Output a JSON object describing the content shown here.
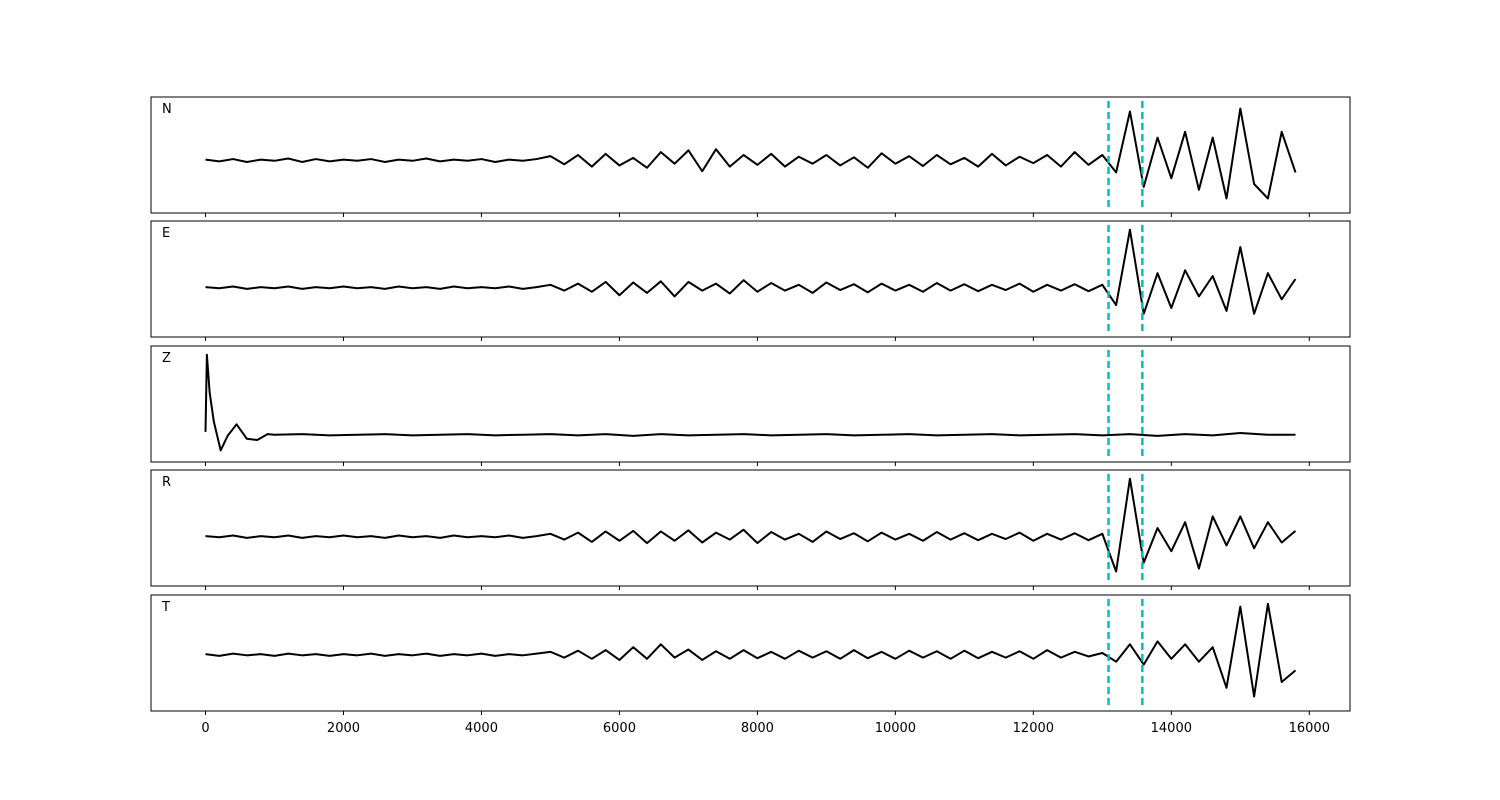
{
  "chart_data": [
    {
      "type": "line",
      "label": "N",
      "color": "#000000",
      "marker_color": "#00bfbf",
      "markers": [
        13090,
        13580
      ],
      "xlim": [
        -790,
        16590
      ],
      "ylim": [
        -1,
        1
      ],
      "xticks": [
        0,
        2000,
        4000,
        6000,
        8000,
        10000,
        12000,
        14000,
        16000
      ],
      "show_xtick_labels": false,
      "x": [
        0,
        200,
        400,
        600,
        800,
        1000,
        1200,
        1400,
        1600,
        1800,
        2000,
        2200,
        2400,
        2600,
        2800,
        3000,
        3200,
        3400,
        3600,
        3800,
        4000,
        4200,
        4400,
        4600,
        4800,
        5000,
        5200,
        5400,
        5600,
        5800,
        6000,
        6200,
        6400,
        6600,
        6800,
        7000,
        7200,
        7400,
        7600,
        7800,
        8000,
        8200,
        8400,
        8600,
        8800,
        9000,
        9200,
        9400,
        9600,
        9800,
        10000,
        10200,
        10400,
        10600,
        10800,
        11000,
        11200,
        11400,
        11600,
        11800,
        12000,
        12200,
        12400,
        12600,
        12800,
        13000,
        13200,
        13400,
        13600,
        13800,
        14000,
        14200,
        14400,
        14600,
        14800,
        15000,
        15200,
        15400,
        15600,
        15800
      ],
      "values": [
        -0.08,
        -0.11,
        -0.07,
        -0.12,
        -0.08,
        -0.1,
        -0.06,
        -0.12,
        -0.07,
        -0.11,
        -0.08,
        -0.1,
        -0.07,
        -0.12,
        -0.08,
        -0.1,
        -0.06,
        -0.11,
        -0.08,
        -0.1,
        -0.07,
        -0.12,
        -0.08,
        -0.1,
        -0.07,
        -0.02,
        -0.16,
        0.0,
        -0.2,
        0.02,
        -0.18,
        -0.05,
        -0.22,
        0.05,
        -0.15,
        0.08,
        -0.28,
        0.1,
        -0.2,
        0.0,
        -0.17,
        0.02,
        -0.2,
        -0.03,
        -0.15,
        0.0,
        -0.18,
        -0.04,
        -0.22,
        0.03,
        -0.15,
        -0.02,
        -0.19,
        0.0,
        -0.16,
        -0.05,
        -0.2,
        0.02,
        -0.18,
        -0.03,
        -0.14,
        0.0,
        -0.2,
        0.05,
        -0.17,
        0.0,
        -0.3,
        0.75,
        -0.55,
        0.3,
        -0.4,
        0.4,
        -0.6,
        0.3,
        -0.75,
        0.8,
        -0.5,
        -0.75,
        0.4,
        -0.3
      ]
    },
    {
      "type": "line",
      "label": "E",
      "color": "#000000",
      "marker_color": "#00bfbf",
      "markers": [
        13090,
        13580
      ],
      "xlim": [
        -790,
        16590
      ],
      "ylim": [
        -1,
        1
      ],
      "xticks": [
        0,
        2000,
        4000,
        6000,
        8000,
        10000,
        12000,
        14000,
        16000
      ],
      "show_xtick_labels": false,
      "x": [
        0,
        200,
        400,
        600,
        800,
        1000,
        1200,
        1400,
        1600,
        1800,
        2000,
        2200,
        2400,
        2600,
        2800,
        3000,
        3200,
        3400,
        3600,
        3800,
        4000,
        4200,
        4400,
        4600,
        4800,
        5000,
        5200,
        5400,
        5600,
        5800,
        6000,
        6200,
        6400,
        6600,
        6800,
        7000,
        7200,
        7400,
        7600,
        7800,
        8000,
        8200,
        8400,
        8600,
        8800,
        9000,
        9200,
        9400,
        9600,
        9800,
        10000,
        10200,
        10400,
        10600,
        10800,
        11000,
        11200,
        11400,
        11600,
        11800,
        12000,
        12200,
        12400,
        12600,
        12800,
        13000,
        13200,
        13400,
        13600,
        13800,
        14000,
        14200,
        14400,
        14600,
        14800,
        15000,
        15200,
        15400,
        15600,
        15800
      ],
      "values": [
        -0.14,
        -0.16,
        -0.13,
        -0.17,
        -0.14,
        -0.16,
        -0.13,
        -0.17,
        -0.14,
        -0.16,
        -0.13,
        -0.16,
        -0.14,
        -0.17,
        -0.13,
        -0.16,
        -0.14,
        -0.17,
        -0.13,
        -0.16,
        -0.14,
        -0.16,
        -0.13,
        -0.17,
        -0.14,
        -0.1,
        -0.2,
        -0.08,
        -0.22,
        -0.05,
        -0.28,
        -0.06,
        -0.24,
        -0.04,
        -0.3,
        -0.05,
        -0.2,
        -0.08,
        -0.25,
        -0.02,
        -0.22,
        -0.07,
        -0.2,
        -0.1,
        -0.24,
        -0.06,
        -0.19,
        -0.09,
        -0.23,
        -0.08,
        -0.2,
        -0.1,
        -0.22,
        -0.07,
        -0.2,
        -0.09,
        -0.21,
        -0.1,
        -0.19,
        -0.08,
        -0.22,
        -0.1,
        -0.2,
        -0.09,
        -0.21,
        -0.1,
        -0.45,
        0.85,
        -0.6,
        0.1,
        -0.5,
        0.15,
        -0.3,
        0.05,
        -0.55,
        0.55,
        -0.6,
        0.1,
        -0.35,
        0.0
      ]
    },
    {
      "type": "line",
      "label": "Z",
      "color": "#000000",
      "marker_color": "#00bfbf",
      "markers": [
        13090,
        13580
      ],
      "xlim": [
        -790,
        16590
      ],
      "ylim": [
        -1,
        1
      ],
      "xticks": [
        0,
        2000,
        4000,
        6000,
        8000,
        10000,
        12000,
        14000,
        16000
      ],
      "show_xtick_labels": false,
      "x": [
        0,
        20,
        60,
        120,
        220,
        320,
        450,
        600,
        750,
        900,
        1000,
        1400,
        1800,
        2200,
        2600,
        3000,
        3400,
        3800,
        4200,
        4600,
        5000,
        5400,
        5800,
        6200,
        6600,
        7000,
        7400,
        7800,
        8200,
        8600,
        9000,
        9400,
        9800,
        10200,
        10600,
        11000,
        11400,
        11800,
        12200,
        12600,
        13000,
        13400,
        13800,
        14200,
        14600,
        15000,
        15400,
        15800
      ],
      "values": [
        -0.48,
        0.85,
        0.2,
        -0.3,
        -0.8,
        -0.55,
        -0.35,
        -0.6,
        -0.62,
        -0.52,
        -0.53,
        -0.52,
        -0.54,
        -0.53,
        -0.52,
        -0.54,
        -0.53,
        -0.52,
        -0.54,
        -0.53,
        -0.52,
        -0.54,
        -0.52,
        -0.55,
        -0.52,
        -0.54,
        -0.53,
        -0.52,
        -0.54,
        -0.53,
        -0.52,
        -0.54,
        -0.53,
        -0.52,
        -0.54,
        -0.53,
        -0.52,
        -0.54,
        -0.53,
        -0.52,
        -0.54,
        -0.52,
        -0.55,
        -0.52,
        -0.54,
        -0.5,
        -0.53,
        -0.53
      ]
    },
    {
      "type": "line",
      "label": "R",
      "color": "#000000",
      "marker_color": "#00bfbf",
      "markers": [
        13090,
        13580
      ],
      "xlim": [
        -790,
        16590
      ],
      "ylim": [
        -1,
        1
      ],
      "xticks": [
        0,
        2000,
        4000,
        6000,
        8000,
        10000,
        12000,
        14000,
        16000
      ],
      "show_xtick_labels": false,
      "x": [
        0,
        200,
        400,
        600,
        800,
        1000,
        1200,
        1400,
        1600,
        1800,
        2000,
        2200,
        2400,
        2600,
        2800,
        3000,
        3200,
        3400,
        3600,
        3800,
        4000,
        4200,
        4400,
        4600,
        4800,
        5000,
        5200,
        5400,
        5600,
        5800,
        6000,
        6200,
        6400,
        6600,
        6800,
        7000,
        7200,
        7400,
        7600,
        7800,
        8000,
        8200,
        8400,
        8600,
        8800,
        9000,
        9200,
        9400,
        9600,
        9800,
        10000,
        10200,
        10400,
        10600,
        10800,
        11000,
        11200,
        11400,
        11600,
        11800,
        12000,
        12200,
        12400,
        12600,
        12800,
        13000,
        13200,
        13400,
        13600,
        13800,
        14000,
        14200,
        14400,
        14600,
        14800,
        15000,
        15200,
        15400,
        15600,
        15800
      ],
      "values": [
        -0.14,
        -0.16,
        -0.13,
        -0.17,
        -0.14,
        -0.16,
        -0.13,
        -0.17,
        -0.14,
        -0.16,
        -0.13,
        -0.16,
        -0.14,
        -0.17,
        -0.13,
        -0.16,
        -0.14,
        -0.17,
        -0.13,
        -0.16,
        -0.14,
        -0.16,
        -0.13,
        -0.17,
        -0.14,
        -0.1,
        -0.2,
        -0.08,
        -0.24,
        -0.06,
        -0.22,
        -0.05,
        -0.26,
        -0.06,
        -0.22,
        -0.04,
        -0.25,
        -0.08,
        -0.2,
        -0.03,
        -0.26,
        -0.07,
        -0.2,
        -0.1,
        -0.24,
        -0.06,
        -0.19,
        -0.09,
        -0.23,
        -0.08,
        -0.2,
        -0.1,
        -0.22,
        -0.07,
        -0.2,
        -0.09,
        -0.21,
        -0.1,
        -0.19,
        -0.08,
        -0.22,
        -0.1,
        -0.2,
        -0.09,
        -0.21,
        -0.1,
        -0.75,
        0.85,
        -0.6,
        0.0,
        -0.4,
        0.1,
        -0.7,
        0.2,
        -0.3,
        0.2,
        -0.35,
        0.1,
        -0.25,
        -0.05
      ]
    },
    {
      "type": "line",
      "label": "T",
      "color": "#000000",
      "marker_color": "#00bfbf",
      "markers": [
        13090,
        13580
      ],
      "xlim": [
        -790,
        16590
      ],
      "ylim": [
        -1,
        1
      ],
      "xticks": [
        0,
        2000,
        4000,
        6000,
        8000,
        10000,
        12000,
        14000,
        16000
      ],
      "show_xtick_labels": true,
      "x": [
        0,
        200,
        400,
        600,
        800,
        1000,
        1200,
        1400,
        1600,
        1800,
        2000,
        2200,
        2400,
        2600,
        2800,
        3000,
        3200,
        3400,
        3600,
        3800,
        4000,
        4200,
        4400,
        4600,
        4800,
        5000,
        5200,
        5400,
        5600,
        5800,
        6000,
        6200,
        6400,
        6600,
        6800,
        7000,
        7200,
        7400,
        7600,
        7800,
        8000,
        8200,
        8400,
        8600,
        8800,
        9000,
        9200,
        9400,
        9600,
        9800,
        10000,
        10200,
        10400,
        10600,
        10800,
        11000,
        11200,
        11400,
        11600,
        11800,
        12000,
        12200,
        12400,
        12600,
        12800,
        13000,
        13200,
        13400,
        13600,
        13800,
        14000,
        14200,
        14400,
        14600,
        14800,
        15000,
        15200,
        15400,
        15600,
        15800
      ],
      "values": [
        -0.02,
        -0.05,
        -0.01,
        -0.04,
        -0.02,
        -0.05,
        -0.01,
        -0.04,
        -0.02,
        -0.05,
        -0.02,
        -0.04,
        -0.01,
        -0.05,
        -0.02,
        -0.04,
        -0.01,
        -0.05,
        -0.02,
        -0.04,
        -0.01,
        -0.05,
        -0.02,
        -0.04,
        -0.01,
        0.02,
        -0.08,
        0.04,
        -0.1,
        0.05,
        -0.12,
        0.1,
        -0.1,
        0.15,
        -0.08,
        0.06,
        -0.12,
        0.03,
        -0.1,
        0.05,
        -0.09,
        0.02,
        -0.1,
        0.04,
        -0.08,
        0.03,
        -0.1,
        0.05,
        -0.09,
        0.02,
        -0.1,
        0.04,
        -0.08,
        0.03,
        -0.1,
        0.04,
        -0.09,
        0.02,
        -0.08,
        0.03,
        -0.1,
        0.05,
        -0.08,
        0.02,
        -0.06,
        0.0,
        -0.15,
        0.15,
        -0.2,
        0.2,
        -0.1,
        0.15,
        -0.15,
        0.1,
        -0.6,
        0.8,
        -0.75,
        0.85,
        -0.5,
        -0.3
      ]
    }
  ]
}
